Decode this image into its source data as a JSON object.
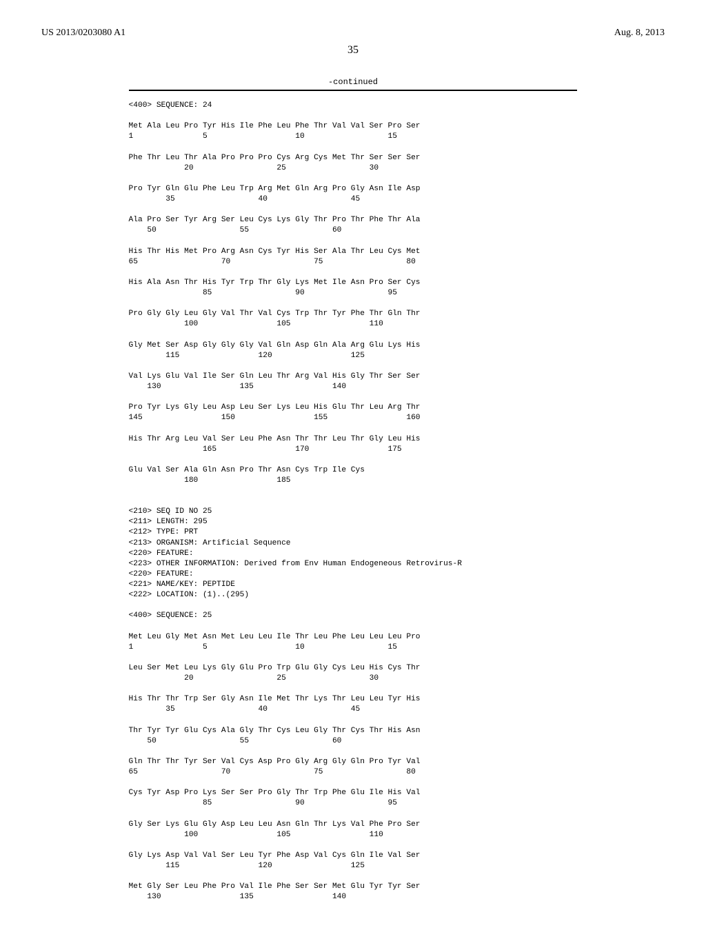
{
  "header": {
    "patent_number": "US 2013/0203080 A1",
    "date": "Aug. 8, 2013"
  },
  "page_number": "35",
  "continued_label": "-continued",
  "sequence_text": "<400> SEQUENCE: 24\n\nMet Ala Leu Pro Tyr His Ile Phe Leu Phe Thr Val Val Ser Pro Ser\n1               5                   10                  15\n\nPhe Thr Leu Thr Ala Pro Pro Pro Cys Arg Cys Met Thr Ser Ser Ser\n            20                  25                  30\n\nPro Tyr Gln Glu Phe Leu Trp Arg Met Gln Arg Pro Gly Asn Ile Asp\n        35                  40                  45\n\nAla Pro Ser Tyr Arg Ser Leu Cys Lys Gly Thr Pro Thr Phe Thr Ala\n    50                  55                  60\n\nHis Thr His Met Pro Arg Asn Cys Tyr His Ser Ala Thr Leu Cys Met\n65                  70                  75                  80\n\nHis Ala Asn Thr His Tyr Trp Thr Gly Lys Met Ile Asn Pro Ser Cys\n                85                  90                  95\n\nPro Gly Gly Leu Gly Val Thr Val Cys Trp Thr Tyr Phe Thr Gln Thr\n            100                 105                 110\n\nGly Met Ser Asp Gly Gly Gly Val Gln Asp Gln Ala Arg Glu Lys His\n        115                 120                 125\n\nVal Lys Glu Val Ile Ser Gln Leu Thr Arg Val His Gly Thr Ser Ser\n    130                 135                 140\n\nPro Tyr Lys Gly Leu Asp Leu Ser Lys Leu His Glu Thr Leu Arg Thr\n145                 150                 155                 160\n\nHis Thr Arg Leu Val Ser Leu Phe Asn Thr Thr Leu Thr Gly Leu His\n                165                 170                 175\n\nGlu Val Ser Ala Gln Asn Pro Thr Asn Cys Trp Ile Cys\n            180                 185\n\n\n<210> SEQ ID NO 25\n<211> LENGTH: 295\n<212> TYPE: PRT\n<213> ORGANISM: Artificial Sequence\n<220> FEATURE:\n<223> OTHER INFORMATION: Derived from Env Human Endogeneous Retrovirus-R\n<220> FEATURE:\n<221> NAME/KEY: PEPTIDE\n<222> LOCATION: (1)..(295)\n\n<400> SEQUENCE: 25\n\nMet Leu Gly Met Asn Met Leu Leu Ile Thr Leu Phe Leu Leu Leu Pro\n1               5                   10                  15\n\nLeu Ser Met Leu Lys Gly Glu Pro Trp Glu Gly Cys Leu His Cys Thr\n            20                  25                  30\n\nHis Thr Thr Trp Ser Gly Asn Ile Met Thr Lys Thr Leu Leu Tyr His\n        35                  40                  45\n\nThr Tyr Tyr Glu Cys Ala Gly Thr Cys Leu Gly Thr Cys Thr His Asn\n    50                  55                  60\n\nGln Thr Thr Tyr Ser Val Cys Asp Pro Gly Arg Gly Gln Pro Tyr Val\n65                  70                  75                  80\n\nCys Tyr Asp Pro Lys Ser Ser Pro Gly Thr Trp Phe Glu Ile His Val\n                85                  90                  95\n\nGly Ser Lys Glu Gly Asp Leu Leu Asn Gln Thr Lys Val Phe Pro Ser\n            100                 105                 110\n\nGly Lys Asp Val Val Ser Leu Tyr Phe Asp Val Cys Gln Ile Val Ser\n        115                 120                 125\n\nMet Gly Ser Leu Phe Pro Val Ile Phe Ser Ser Met Glu Tyr Tyr Ser\n    130                 135                 140"
}
